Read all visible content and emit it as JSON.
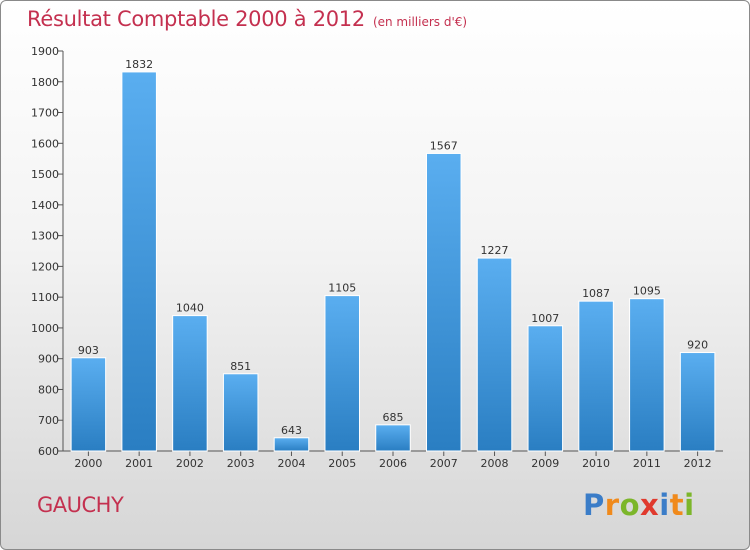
{
  "title": "Résultat Comptable 2000 à 2012",
  "unit": "(en milliers d'€)",
  "commune": "GAUCHY",
  "logo": {
    "letters": [
      "P",
      "r",
      "o",
      "x",
      "i",
      "t",
      "i"
    ],
    "colors": [
      "#3b7dc8",
      "#f08a1c",
      "#7cb62a",
      "#e03a2e",
      "#3b7dc8",
      "#f08a1c",
      "#7cb62a"
    ]
  },
  "colors": {
    "accent": "#c4304f",
    "bar_top": "#5aaef0",
    "bar_bottom": "#2a7ec2"
  },
  "chart_data": {
    "type": "bar",
    "title": "Résultat Comptable 2000 à 2012",
    "ylabel": "(en milliers d'€)",
    "categories": [
      "2000",
      "2001",
      "2002",
      "2003",
      "2004",
      "2005",
      "2006",
      "2007",
      "2008",
      "2009",
      "2010",
      "2011",
      "2012"
    ],
    "values": [
      903,
      1832,
      1040,
      851,
      643,
      1105,
      685,
      1567,
      1227,
      1007,
      1087,
      1095,
      920
    ],
    "ylim": [
      600,
      1900
    ],
    "yticks": [
      600,
      700,
      800,
      900,
      1000,
      1100,
      1200,
      1300,
      1400,
      1500,
      1600,
      1700,
      1800,
      1900
    ],
    "grid": false,
    "legend": "none"
  }
}
